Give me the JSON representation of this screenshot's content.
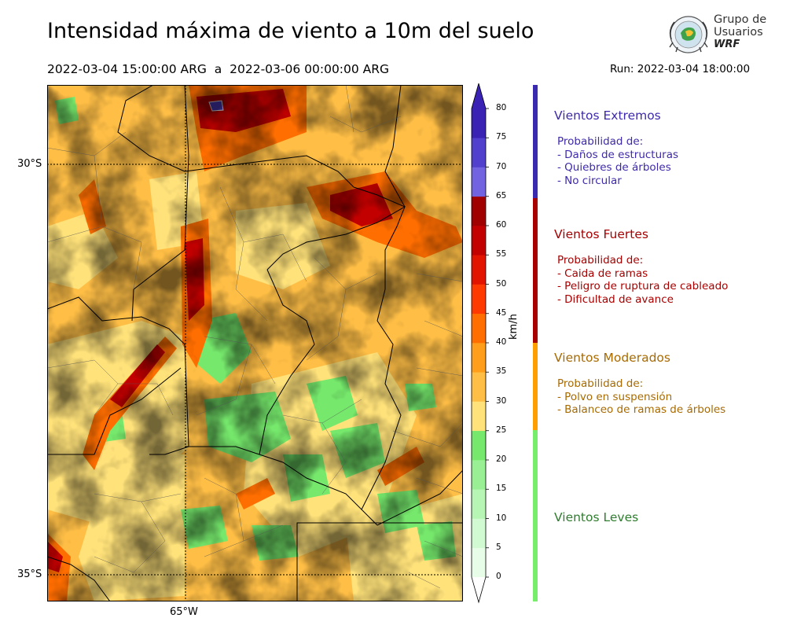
{
  "header": {
    "title": "Intensidad máxima de viento a 10m del suelo",
    "period": "2022-03-04 15:00:00 ARG  a  2022-03-06 00:00:00 ARG",
    "run": "Run: 2022-03-04 18:00:00"
  },
  "logo": {
    "line1": "Grupo de",
    "line2": "Usuarios",
    "line3": "WRF"
  },
  "map": {
    "lat_labels": [
      "30°S",
      "35°S"
    ],
    "lon_labels": [
      "65°W"
    ]
  },
  "colorbar": {
    "unit": "km/h",
    "ticks": [
      "0",
      "5",
      "10",
      "15",
      "20",
      "25",
      "30",
      "35",
      "40",
      "45",
      "50",
      "55",
      "60",
      "65",
      "70",
      "75",
      "80"
    ],
    "levels": [
      {
        "from": 0,
        "to": 5,
        "color": "#e8fde8"
      },
      {
        "from": 5,
        "to": 10,
        "color": "#d2fad2"
      },
      {
        "from": 10,
        "to": 15,
        "color": "#b6f5b4"
      },
      {
        "from": 15,
        "to": 20,
        "color": "#98ef94"
      },
      {
        "from": 20,
        "to": 25,
        "color": "#76e96c"
      },
      {
        "from": 25,
        "to": 30,
        "color": "#ffe27a"
      },
      {
        "from": 30,
        "to": 35,
        "color": "#ffbf46"
      },
      {
        "from": 35,
        "to": 40,
        "color": "#ff9e1a"
      },
      {
        "from": 40,
        "to": 45,
        "color": "#ff6e00"
      },
      {
        "from": 45,
        "to": 50,
        "color": "#ff3a00"
      },
      {
        "from": 50,
        "to": 55,
        "color": "#e21400"
      },
      {
        "from": 55,
        "to": 60,
        "color": "#c20000"
      },
      {
        "from": 60,
        "to": 65,
        "color": "#a00000"
      },
      {
        "from": 65,
        "to": 70,
        "color": "#7264e0"
      },
      {
        "from": 70,
        "to": 75,
        "color": "#5140cd"
      },
      {
        "from": 75,
        "to": 80,
        "color": "#3a22b4"
      }
    ]
  },
  "categories": [
    {
      "title": "Vientos Extremos",
      "color": "#3d2aaa",
      "bar_color": "#3a2ab0",
      "lines": [
        "Probabilidad de:",
        "- Daños de estructuras",
        "- Quiebres de árboles",
        "- No circular"
      ]
    },
    {
      "title": "Vientos Fuertes",
      "color": "#a80000",
      "bar_color": "#a80000",
      "lines": [
        "Probabilidad de:",
        "- Caida de ramas",
        "- Peligro de ruptura de cableado",
        "- Dificultad de avance"
      ]
    },
    {
      "title": "Vientos Moderados",
      "color": "#a86a00",
      "bar_color": "#ff9e00",
      "lines": [
        "Probabilidad de:",
        "- Polvo en suspensión",
        "- Balanceo de ramas de árboles"
      ]
    },
    {
      "title": "Vientos Leves",
      "color": "#2f7d2f",
      "bar_color": "#76ee6c",
      "lines": []
    }
  ]
}
